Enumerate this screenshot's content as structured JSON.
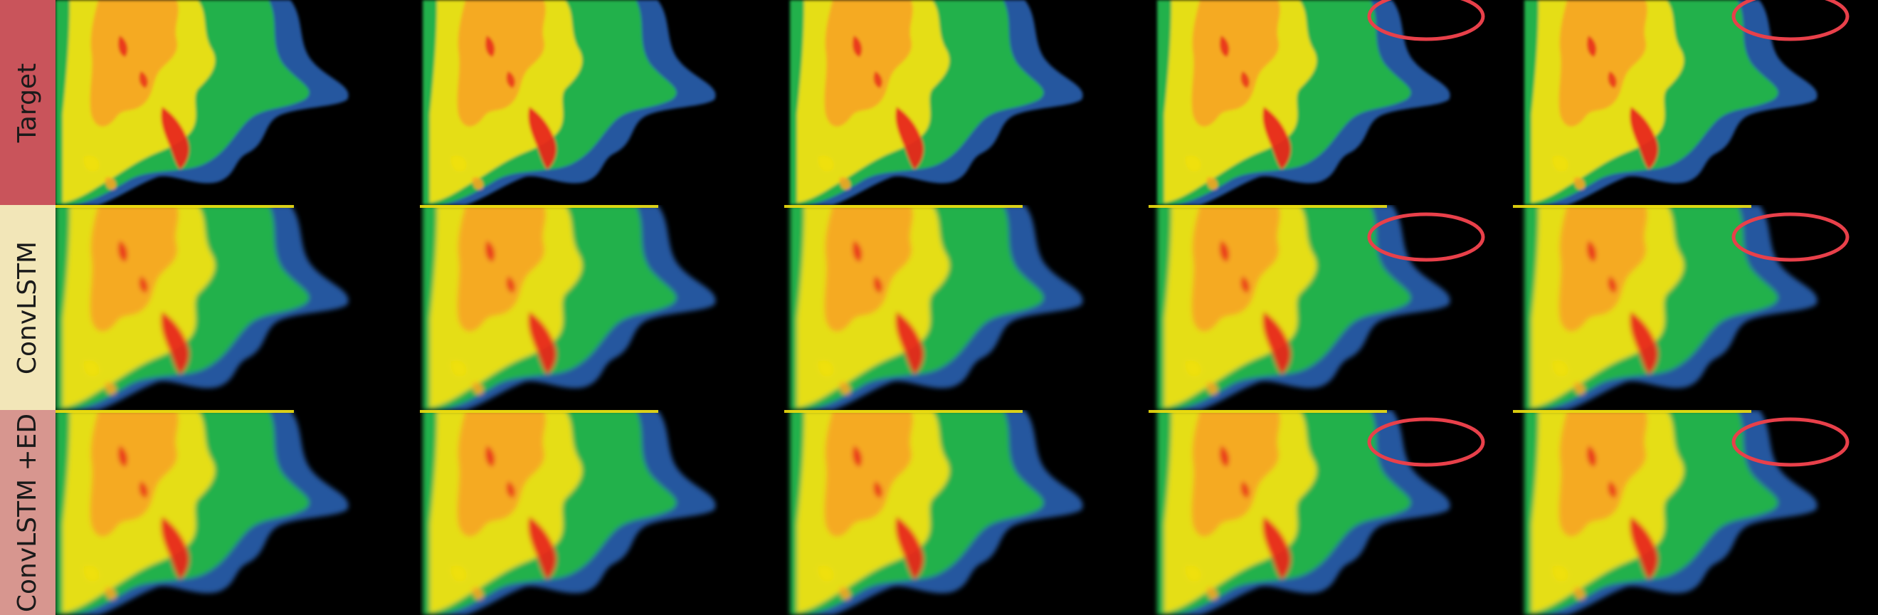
{
  "rows": [
    {
      "label": "Target",
      "label_color": "#c9545b",
      "has_top_strip": false
    },
    {
      "label": "ConvLSTM",
      "label_color": "#f2e6b8",
      "has_top_strip": true
    },
    {
      "label": "ConvLSTM +ED",
      "label_color": "#d7968f",
      "has_top_strip": true
    }
  ],
  "columns": 5,
  "highlight_columns": [
    3,
    4
  ],
  "colors": {
    "background": "#000000",
    "highlight": "#e8404a",
    "radar_low": "#2a5fb0",
    "radar_mid": "#22b14c",
    "radar_high": "#f0e010",
    "radar_peak": "#e8281c"
  }
}
